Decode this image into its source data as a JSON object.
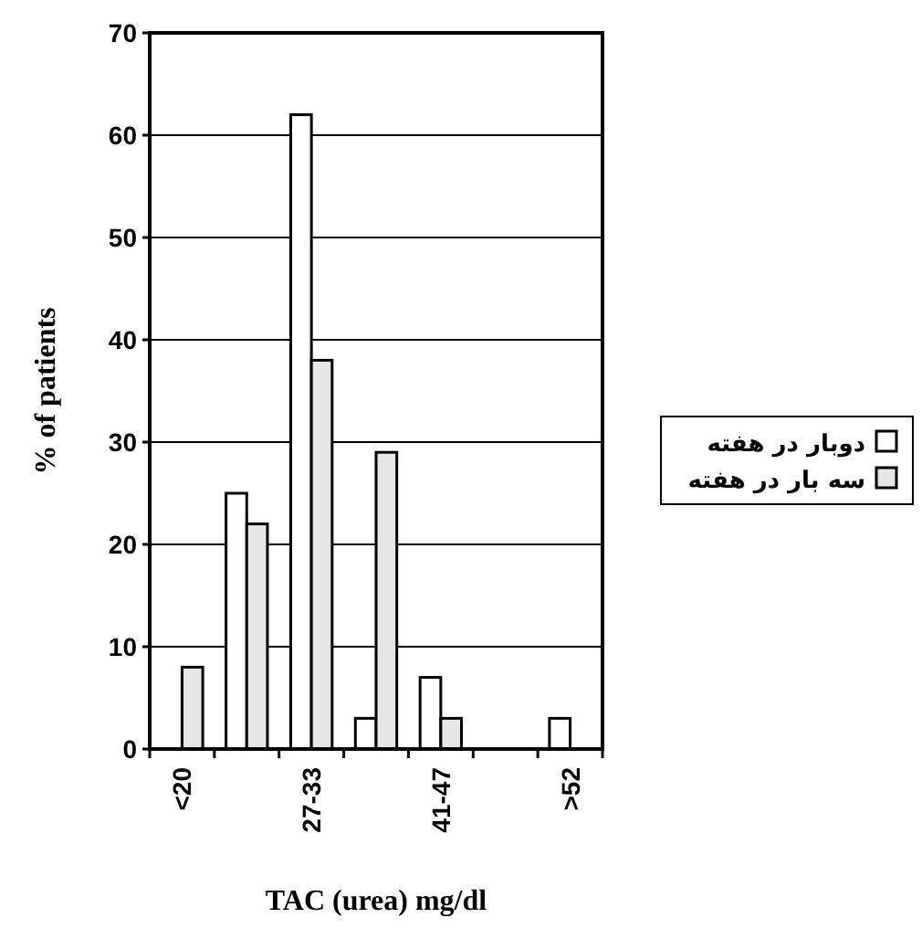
{
  "chart_data": {
    "type": "bar",
    "xlabel": "TAC (urea) mg/dl",
    "ylabel": "% of patients",
    "categories": [
      "<20",
      null,
      "27-33",
      null,
      "41-47",
      null,
      ">52"
    ],
    "series": [
      {
        "name": "دوبار در هفته",
        "color": "#ffffff",
        "values": [
          0,
          25,
          62,
          3,
          7,
          0,
          3
        ]
      },
      {
        "name": "سه بار در هفته",
        "color": "#e6e6e6",
        "values": [
          8,
          22,
          38,
          29,
          3,
          0,
          0
        ]
      }
    ],
    "ylim": [
      0,
      70
    ],
    "yticks": [
      0,
      10,
      20,
      30,
      40,
      50,
      60,
      70
    ],
    "grid": "y",
    "legend": "right"
  }
}
